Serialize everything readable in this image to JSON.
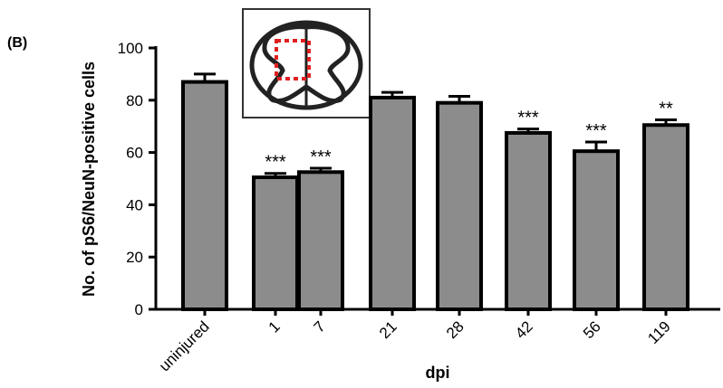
{
  "panel_label": "(B)",
  "chart_data": {
    "type": "bar",
    "ylabel": "No. of pS6/NeuN-positive cells",
    "xlabel": "dpi",
    "categories": [
      "uninjured",
      "1",
      "7",
      "21",
      "28",
      "42",
      "56",
      "119"
    ],
    "values": [
      87,
      50.5,
      52.5,
      81,
      79,
      67.5,
      60.5,
      70.5
    ],
    "errors": [
      3,
      1.5,
      1.5,
      2,
      2.5,
      1.5,
      3.5,
      2
    ],
    "annotations": [
      null,
      "***",
      "***",
      null,
      null,
      "***",
      "***",
      "**"
    ],
    "color": "#8c8c8c",
    "ylim": [
      0,
      100
    ],
    "yticks": [
      0,
      20,
      40,
      60,
      80,
      100
    ]
  }
}
